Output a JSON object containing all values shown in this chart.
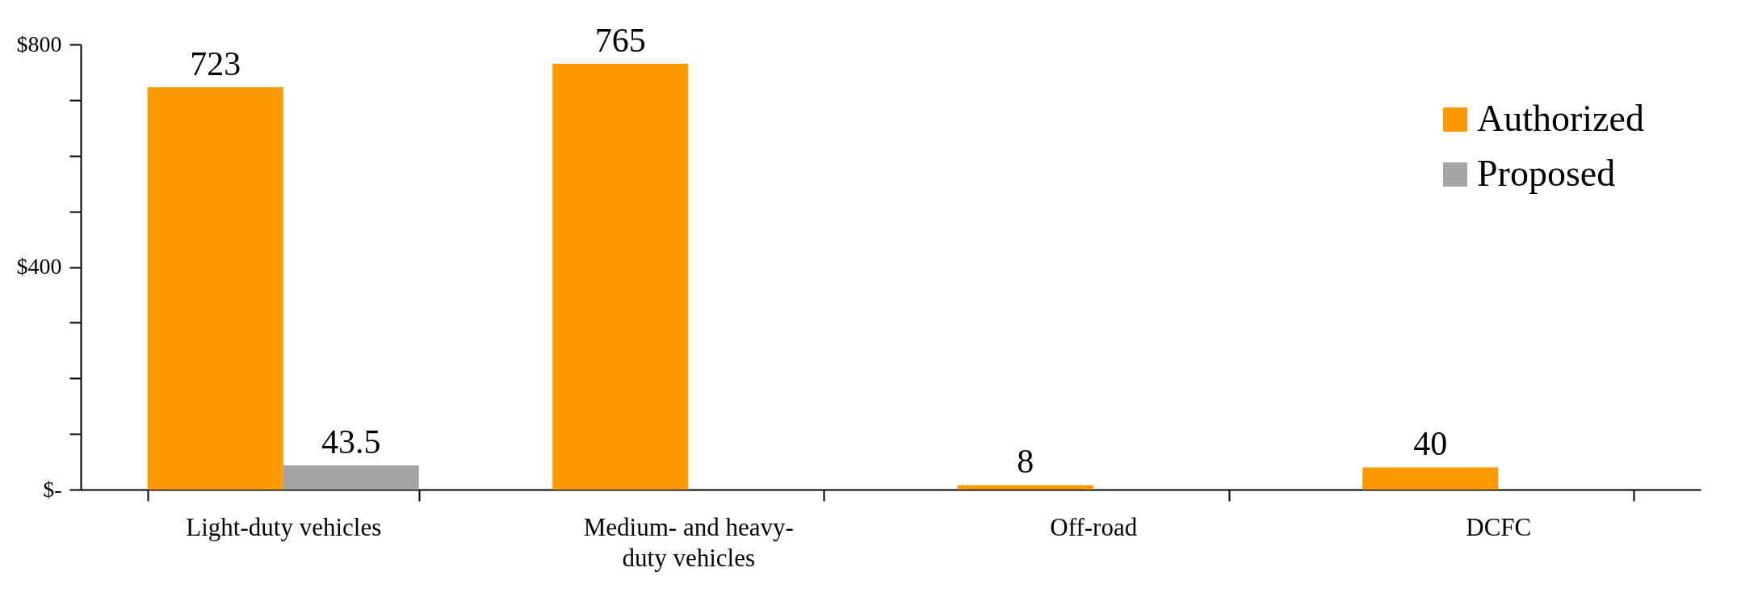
{
  "chart_data": {
    "type": "bar",
    "categories": [
      "Light-duty vehicles",
      "Medium- and heavy-duty vehicles",
      "Off-road",
      "DCFC"
    ],
    "series": [
      {
        "name": "Authorized",
        "color": "#ff9900",
        "values": [
          723,
          765,
          8,
          40
        ]
      },
      {
        "name": "Proposed",
        "color": "#a5a5a5",
        "values": [
          43.5,
          null,
          null,
          null
        ]
      }
    ],
    "ylim": [
      0,
      800
    ],
    "yticks": [
      {
        "value": 0,
        "label": "$-"
      },
      {
        "value": 100,
        "label": null
      },
      {
        "value": 200,
        "label": null
      },
      {
        "value": 300,
        "label": null
      },
      {
        "value": 400,
        "label": "$400"
      },
      {
        "value": 500,
        "label": null
      },
      {
        "value": 600,
        "label": null
      },
      {
        "value": 700,
        "label": null
      },
      {
        "value": 800,
        "label": "$800"
      }
    ],
    "data_labels": true,
    "legend": "top right",
    "grid": false
  }
}
